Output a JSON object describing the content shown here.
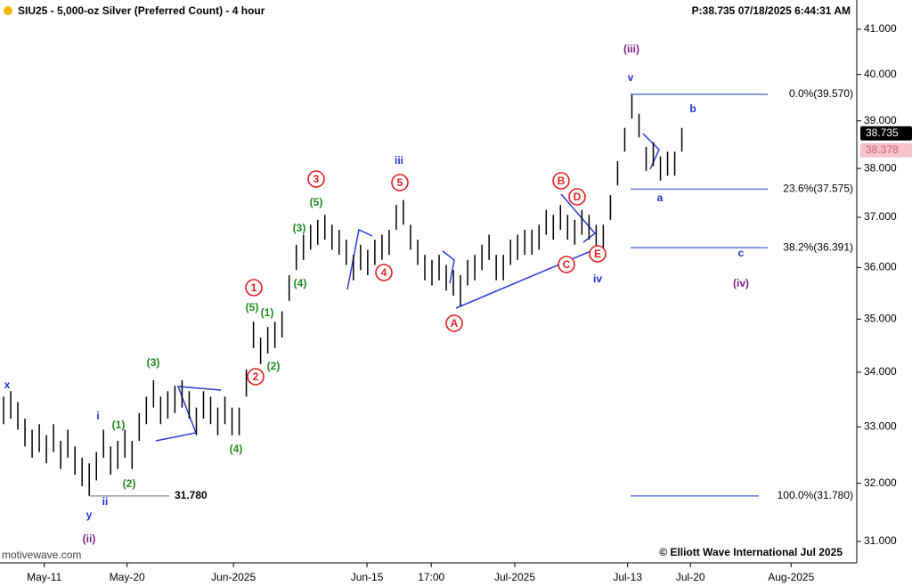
{
  "chart_data": {
    "type": "ohlc",
    "title": "SIU25 - 5,000-oz Silver (Preferred Count) - 4 hour",
    "status": "P:38.735  07/18/2025 6:44:31 AM",
    "watermark": "motivewave.com",
    "copyright": "© Elliott Wave International Jul 2025",
    "log_scale": true,
    "color": "#000000",
    "xlim": [
      -0.5,
      119.5
    ],
    "xticks": [
      {
        "value": 5.7,
        "label": "May-11"
      },
      {
        "value": 17.3,
        "label": "May-20"
      },
      {
        "value": 32.2,
        "label": "Jun-2025"
      },
      {
        "value": 50.9,
        "label": "Jun-15"
      },
      {
        "value": 59.9,
        "label": "17:00"
      },
      {
        "value": 71.6,
        "label": "Jul-2025"
      },
      {
        "value": 87.4,
        "label": "Jul-13"
      },
      {
        "value": 96.2,
        "label": "Jul-20"
      },
      {
        "value": 110.3,
        "label": "Aug-2025"
      }
    ],
    "ylim": [
      30.64,
      41.66
    ],
    "yticks": [
      {
        "value": 31,
        "label": "31.000"
      },
      {
        "value": 32,
        "label": "32.000"
      },
      {
        "value": 33,
        "label": "33.000"
      },
      {
        "value": 34,
        "label": "34.000"
      },
      {
        "value": 35,
        "label": "35.000"
      },
      {
        "value": 36,
        "label": "36.000"
      },
      {
        "value": 37,
        "label": "37.000"
      },
      {
        "value": 38,
        "label": "38.000"
      },
      {
        "value": 39,
        "label": "39.000"
      },
      {
        "value": 40,
        "label": "40.000"
      },
      {
        "value": 41,
        "label": "41.000"
      }
    ],
    "series": [
      {
        "high": [
          33.55,
          33.65,
          33.45,
          33.15,
          32.95,
          33.05,
          32.85,
          33.05,
          32.75,
          32.95,
          32.65,
          32.45,
          32.35,
          32.55,
          32.95,
          32.65,
          32.75,
          32.95,
          32.75,
          33.25,
          33.55,
          33.85,
          33.55,
          33.65,
          33.75,
          33.85,
          33.65,
          33.35,
          33.65,
          33.55,
          33.35,
          33.55,
          33.35,
          33.35,
          34.05,
          34.95,
          34.65,
          34.85,
          34.95,
          35.15,
          35.85,
          36.45,
          36.65,
          36.85,
          36.95,
          37.05,
          36.85,
          36.75,
          36.55,
          36.25,
          36.45,
          36.35,
          36.55,
          36.65,
          36.75,
          37.25,
          37.35,
          36.85,
          36.55,
          36.25,
          36.15,
          36.25,
          36.05,
          35.95,
          35.85,
          36.15,
          36.25,
          36.45,
          36.65,
          36.25,
          36.25,
          36.55,
          36.65,
          36.75,
          36.75,
          36.85,
          37.15,
          37.05,
          37.25,
          37.05,
          36.95,
          37.15,
          37.05,
          36.85,
          36.85,
          37.45,
          38.15,
          38.85,
          39.57,
          39.15,
          38.45,
          38.55,
          38.25,
          38.35,
          38.35,
          38.85
        ],
        "low": [
          33.05,
          33.15,
          32.95,
          32.65,
          32.45,
          32.55,
          32.35,
          32.55,
          32.25,
          32.45,
          32.15,
          31.95,
          31.78,
          32.05,
          32.45,
          32.15,
          32.25,
          32.45,
          32.25,
          32.75,
          33.05,
          33.35,
          33.05,
          33.15,
          33.25,
          33.35,
          33.15,
          32.85,
          33.15,
          33.05,
          32.85,
          33.05,
          32.85,
          32.85,
          33.55,
          34.45,
          34.15,
          34.35,
          34.45,
          34.65,
          35.35,
          35.95,
          36.15,
          36.35,
          36.45,
          36.55,
          36.35,
          36.25,
          36.05,
          35.75,
          35.95,
          35.85,
          36.05,
          36.15,
          36.25,
          36.75,
          36.85,
          36.35,
          36.05,
          35.75,
          35.65,
          35.75,
          35.55,
          35.45,
          35.25,
          35.65,
          35.75,
          35.95,
          36.15,
          35.75,
          35.75,
          36.05,
          36.15,
          36.25,
          36.25,
          36.35,
          36.65,
          36.55,
          36.75,
          36.55,
          36.45,
          36.65,
          36.55,
          36.35,
          36.35,
          36.95,
          37.65,
          38.35,
          39.05,
          38.65,
          37.95,
          38.05,
          37.75,
          37.85,
          37.85,
          38.35
        ]
      }
    ],
    "levels": [
      {
        "value": 39.57,
        "label": "0.0%(39.570)"
      },
      {
        "value": 37.575,
        "label": "23.6%(37.575)"
      },
      {
        "value": 36.391,
        "label": "38.2%(36.391)"
      },
      {
        "value": 31.78,
        "label": "100.0%(31.780)"
      },
      {
        "value": 31.78,
        "label": "31.780"
      }
    ],
    "price_markers": [
      {
        "value": 38.735,
        "label": "38.735",
        "color": "#000000",
        "text_color": "#ffffff"
      },
      {
        "value": 38.378,
        "label": "38.378",
        "color": "#f6c3cb",
        "text_color": "#d06070"
      }
    ],
    "annotations": [
      {
        "text": "x",
        "color": "#1f2fd0"
      },
      {
        "text": "i",
        "color": "#1f2fd0"
      },
      {
        "text": "ii",
        "color": "#1f2fd0"
      },
      {
        "text": "y",
        "color": "#1f2fd0"
      },
      {
        "text": "(ii)",
        "color": "#7a1f8a"
      },
      {
        "text": "(1)",
        "color": "#1e8a1e"
      },
      {
        "text": "(2)",
        "color": "#1e8a1e"
      },
      {
        "text": "(3)",
        "color": "#1e8a1e"
      },
      {
        "text": "(4)",
        "color": "#1e8a1e"
      },
      {
        "text": "1",
        "color": "#e02020",
        "circled": true
      },
      {
        "text": "(5)",
        "color": "#1e8a1e"
      },
      {
        "text": "(1)",
        "color": "#1e8a1e"
      },
      {
        "text": "2",
        "color": "#e02020",
        "circled": true
      },
      {
        "text": "(2)",
        "color": "#1e8a1e"
      },
      {
        "text": "(3)",
        "color": "#1e8a1e"
      },
      {
        "text": "(4)",
        "color": "#1e8a1e"
      },
      {
        "text": "3",
        "color": "#e02020",
        "circled": true
      },
      {
        "text": "(5)",
        "color": "#1e8a1e"
      },
      {
        "text": "iii",
        "color": "#1f2fd0"
      },
      {
        "text": "5",
        "color": "#e02020",
        "circled": true
      },
      {
        "text": "4",
        "color": "#e02020",
        "circled": true
      },
      {
        "text": "A",
        "color": "#e02020",
        "circled": true
      },
      {
        "text": "B",
        "color": "#e02020",
        "circled": true
      },
      {
        "text": "D",
        "color": "#e02020",
        "circled": true
      },
      {
        "text": "C",
        "color": "#e02020",
        "circled": true
      },
      {
        "text": "E",
        "color": "#e02020",
        "circled": true
      },
      {
        "text": "iv",
        "color": "#1f2fd0"
      },
      {
        "text": "(iii)",
        "color": "#7a1f8a"
      },
      {
        "text": "v",
        "color": "#1f2fd0"
      },
      {
        "text": "b",
        "color": "#1f2fd0"
      },
      {
        "text": "a",
        "color": "#1f2fd0"
      },
      {
        "text": "c",
        "color": "#1f2fd0"
      },
      {
        "text": "(iv)",
        "color": "#7a1f8a"
      }
    ]
  }
}
